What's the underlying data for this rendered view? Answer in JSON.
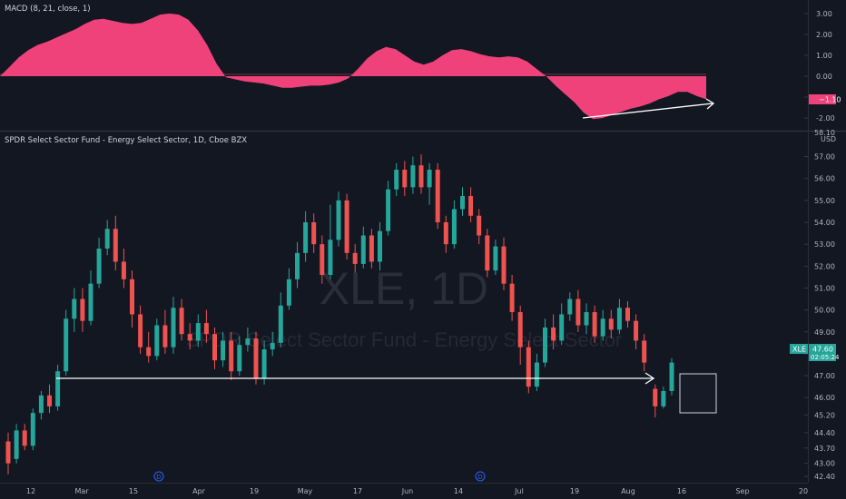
{
  "macd_pane": {
    "title": "MACD (8, 21, close, 1)",
    "y_ticks": [
      "3.00",
      "2.00",
      "1.00",
      "0.00",
      "-1.00",
      "-2.00"
    ],
    "last_value": "−1.10",
    "color": "#f0427a"
  },
  "price_pane": {
    "title": "SPDR Select Sector Fund - Energy Select Sector, 1D, Cboe BZX",
    "currency": "USD",
    "y_ticks": [
      "58.10",
      "57.00",
      "56.00",
      "55.00",
      "54.00",
      "53.00",
      "52.00",
      "51.00",
      "50.00",
      "49.00",
      "48.00",
      "47.00",
      "46.00",
      "45.20",
      "44.40",
      "43.70",
      "43.00",
      "42.40"
    ],
    "symbol_badge": "XLE",
    "price_badge": "47.60",
    "countdown": "02:05:24",
    "watermark_symbol": "XLE, 1D",
    "watermark_name": "SPDR Select Sector Fund - Energy Select Sector"
  },
  "x_ticks": [
    "12",
    "Mar",
    "15",
    "Apr",
    "19",
    "May",
    "17",
    "Jun",
    "14",
    "Jul",
    "19",
    "Aug",
    "16",
    "Sep",
    "20"
  ],
  "dividend_marker": "D",
  "colors": {
    "background": "#131722",
    "up": "#26a69a",
    "down": "#ef5350",
    "macd": "#f0427a",
    "annotation": "#ffffff"
  },
  "chart_data": {
    "type": "candlestick",
    "symbol": "XLE",
    "interval": "1D",
    "ylim": [
      42.2,
      58.1
    ],
    "macd_ylim": [
      -2.3,
      3.3
    ],
    "macd_samples": [
      0.0,
      0.45,
      0.9,
      1.25,
      1.5,
      1.65,
      1.85,
      2.05,
      2.25,
      2.5,
      2.7,
      2.75,
      2.65,
      2.55,
      2.5,
      2.55,
      2.75,
      2.95,
      3.0,
      2.95,
      2.7,
      2.2,
      1.5,
      0.6,
      -0.05,
      -0.15,
      -0.25,
      -0.3,
      -0.35,
      -0.45,
      -0.55,
      -0.55,
      -0.5,
      -0.45,
      -0.45,
      -0.4,
      -0.3,
      -0.1,
      0.35,
      0.85,
      1.2,
      1.4,
      1.3,
      1.0,
      0.7,
      0.55,
      0.7,
      1.0,
      1.25,
      1.3,
      1.2,
      1.05,
      0.95,
      0.9,
      0.95,
      0.9,
      0.7,
      0.35,
      0.0,
      -0.45,
      -0.85,
      -1.25,
      -1.75,
      -2.05,
      -2.0,
      -1.85,
      -1.7,
      -1.55,
      -1.45,
      -1.3,
      -1.1,
      -0.95,
      -0.75,
      -0.75,
      -0.95,
      -1.1
    ],
    "candles": [
      [
        44.0,
        43.0,
        44.4,
        42.5
      ],
      [
        43.2,
        44.5,
        44.8,
        43.0
      ],
      [
        44.5,
        43.8,
        44.8,
        43.6
      ],
      [
        43.8,
        45.3,
        45.5,
        43.6
      ],
      [
        45.3,
        46.1,
        46.3,
        45.0
      ],
      [
        46.1,
        45.6,
        46.6,
        45.3
      ],
      [
        45.6,
        47.2,
        47.5,
        45.4
      ],
      [
        47.2,
        49.6,
        50.0,
        47.0
      ],
      [
        49.6,
        50.5,
        51.0,
        49.0
      ],
      [
        50.5,
        49.5,
        51.0,
        49.0
      ],
      [
        49.5,
        51.2,
        51.8,
        49.3
      ],
      [
        51.2,
        52.8,
        53.3,
        51.0
      ],
      [
        52.8,
        53.7,
        54.1,
        52.5
      ],
      [
        53.7,
        52.2,
        54.3,
        51.8
      ],
      [
        52.2,
        51.4,
        52.8,
        51.0
      ],
      [
        51.4,
        49.8,
        51.8,
        49.2
      ],
      [
        49.8,
        48.3,
        50.2,
        48.0
      ],
      [
        48.3,
        47.9,
        49.0,
        47.6
      ],
      [
        47.9,
        49.3,
        49.6,
        47.7
      ],
      [
        49.3,
        48.3,
        50.0,
        48.0
      ],
      [
        48.3,
        50.1,
        50.6,
        48.0
      ],
      [
        50.1,
        48.9,
        50.5,
        48.6
      ],
      [
        48.9,
        48.6,
        49.4,
        48.2
      ],
      [
        48.6,
        49.4,
        49.8,
        48.3
      ],
      [
        49.4,
        48.9,
        50.0,
        48.5
      ],
      [
        48.9,
        47.7,
        49.2,
        47.3
      ],
      [
        47.7,
        48.6,
        49.0,
        47.4
      ],
      [
        48.6,
        47.2,
        49.0,
        46.8
      ],
      [
        47.2,
        48.4,
        48.8,
        47.0
      ],
      [
        48.4,
        48.7,
        49.2,
        48.1
      ],
      [
        48.7,
        46.9,
        49.0,
        46.6
      ],
      [
        46.9,
        48.2,
        48.6,
        46.6
      ],
      [
        48.2,
        48.5,
        49.0,
        47.9
      ],
      [
        48.5,
        50.2,
        50.8,
        48.3
      ],
      [
        50.2,
        51.4,
        51.9,
        50.0
      ],
      [
        51.4,
        52.6,
        53.1,
        51.0
      ],
      [
        52.6,
        54.0,
        54.5,
        52.2
      ],
      [
        54.0,
        53.0,
        54.4,
        52.6
      ],
      [
        53.0,
        51.6,
        53.4,
        51.2
      ],
      [
        51.6,
        53.2,
        54.8,
        51.4
      ],
      [
        53.2,
        55.0,
        55.4,
        52.9
      ],
      [
        55.0,
        52.6,
        55.3,
        52.3
      ],
      [
        52.6,
        52.1,
        53.0,
        51.7
      ],
      [
        52.1,
        53.4,
        53.8,
        51.9
      ],
      [
        53.4,
        52.2,
        53.7,
        51.9
      ],
      [
        52.2,
        53.6,
        54.0,
        51.8
      ],
      [
        53.6,
        55.5,
        55.9,
        53.4
      ],
      [
        55.5,
        56.4,
        56.7,
        55.2
      ],
      [
        56.4,
        55.6,
        56.8,
        55.2
      ],
      [
        55.6,
        56.6,
        57.0,
        55.3
      ],
      [
        56.6,
        55.6,
        57.1,
        55.3
      ],
      [
        55.6,
        56.4,
        56.7,
        54.8
      ],
      [
        56.4,
        54.0,
        56.7,
        53.7
      ],
      [
        54.0,
        53.0,
        54.3,
        52.6
      ],
      [
        53.0,
        54.6,
        55.0,
        52.8
      ],
      [
        54.6,
        55.2,
        55.6,
        54.3
      ],
      [
        55.2,
        54.3,
        55.6,
        54.0
      ],
      [
        54.3,
        53.4,
        54.6,
        53.0
      ],
      [
        53.4,
        51.8,
        53.7,
        51.5
      ],
      [
        51.8,
        52.9,
        53.2,
        51.6
      ],
      [
        52.9,
        51.2,
        53.3,
        50.9
      ],
      [
        51.2,
        49.9,
        51.6,
        49.5
      ],
      [
        49.9,
        48.3,
        50.2,
        47.5
      ],
      [
        48.3,
        46.5,
        48.6,
        46.2
      ],
      [
        46.5,
        47.6,
        48.0,
        46.3
      ],
      [
        47.6,
        49.2,
        49.6,
        47.4
      ],
      [
        49.2,
        48.6,
        49.8,
        48.2
      ],
      [
        48.6,
        49.8,
        50.3,
        48.4
      ],
      [
        49.8,
        50.5,
        50.8,
        49.5
      ],
      [
        50.5,
        49.3,
        50.9,
        49.0
      ],
      [
        49.3,
        49.9,
        50.3,
        48.9
      ],
      [
        49.9,
        48.8,
        50.2,
        48.5
      ],
      [
        48.8,
        49.6,
        50.0,
        48.6
      ],
      [
        49.6,
        49.1,
        50.0,
        48.7
      ],
      [
        49.1,
        50.1,
        50.5,
        48.9
      ],
      [
        50.1,
        49.5,
        50.4,
        49.2
      ],
      [
        49.5,
        48.6,
        49.8,
        48.2
      ],
      [
        48.6,
        47.6,
        48.9,
        47.2
      ],
      [
        46.4,
        45.6,
        46.6,
        45.1
      ],
      [
        45.6,
        46.3,
        46.5,
        45.5
      ],
      [
        46.3,
        47.6,
        47.8,
        46.1
      ]
    ],
    "annotations": [
      {
        "type": "horizontal-arrow",
        "level": 46.5
      },
      {
        "type": "macd-trend-arrow",
        "from": -2.0,
        "to": -1.3
      },
      {
        "type": "highlight-box",
        "low": 45.1,
        "high": 46.7
      }
    ]
  }
}
